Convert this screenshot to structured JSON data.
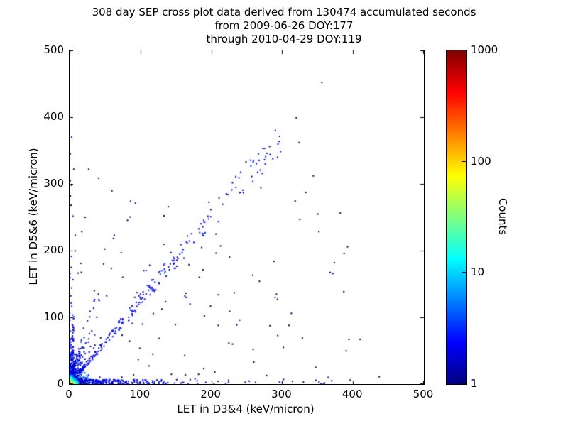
{
  "chart_data": {
    "type": "scatter",
    "title": "308 day SEP cross plot data derived from 130474 accumulated seconds",
    "subtitle1": "from 2009-06-26 DOY:177",
    "subtitle2": "through 2010-04-29 DOY:119",
    "xlabel": "LET in D3&4 (keV/micron)",
    "ylabel": "LET in D5&6 (keV/micron)",
    "xlim": [
      0,
      500
    ],
    "ylim": [
      0,
      500
    ],
    "xticks": [
      0,
      100,
      200,
      300,
      400,
      500
    ],
    "yticks": [
      0,
      100,
      200,
      300,
      400,
      500
    ],
    "grid": false,
    "colorbar": {
      "label": "Counts",
      "scale": "log",
      "min": 1,
      "max": 1000,
      "ticks": [
        1,
        10,
        100,
        1000
      ],
      "colormap": "jet"
    },
    "point_color_low": "#000080",
    "point_color_high": "#800000",
    "seed": 20091777,
    "clusters": [
      {
        "name": "origin-halo",
        "kind": "halo",
        "n": 650,
        "scale": 7,
        "max": 45,
        "cmax": 6,
        "size": 2
      },
      {
        "name": "origin-fan",
        "kind": "fan",
        "n": 160,
        "scale": 11,
        "max": 55,
        "cmax": 2,
        "size": 2
      },
      {
        "name": "x-axis-band",
        "kind": "xband",
        "n": 260,
        "scale": 55,
        "max": 430,
        "thick": 7,
        "cmax": 2,
        "size": 2
      },
      {
        "name": "y-axis-band",
        "kind": "yband",
        "n": 150,
        "scale": 40,
        "max": 330,
        "thick": 6,
        "cmax": 2,
        "size": 2
      },
      {
        "name": "diagonal-band",
        "kind": "diagonal",
        "n": 300,
        "xmin": 4,
        "xmax": 300,
        "power": 2.2,
        "slope": 1.25,
        "spread": 14,
        "cmax": 2,
        "size": 2
      },
      {
        "name": "sparse-field",
        "kind": "field",
        "n": 110,
        "xmax": 400,
        "ymax": 320,
        "size": 2
      },
      {
        "name": "origin-core",
        "kind": "core",
        "n": 700,
        "scale": 3,
        "max": 12,
        "peak": 150,
        "falloff": 5,
        "size": 2
      }
    ],
    "points": [
      [
        356,
        452
      ],
      [
        324,
        362
      ],
      [
        249,
        333
      ],
      [
        344,
        312
      ],
      [
        320,
        399
      ],
      [
        283,
        344
      ],
      [
        211,
        279
      ],
      [
        93,
        271
      ],
      [
        27,
        322
      ],
      [
        3,
        298
      ],
      [
        8,
        223
      ],
      [
        63,
        223
      ],
      [
        108,
        170
      ],
      [
        143,
        197
      ],
      [
        213,
        207
      ],
      [
        183,
        160
      ],
      [
        268,
        154
      ],
      [
        313,
        106
      ],
      [
        410,
        67
      ],
      [
        437,
        11
      ],
      [
        396,
        6
      ],
      [
        365,
        10
      ],
      [
        352,
        3
      ],
      [
        302,
        7
      ],
      [
        278,
        13
      ],
      [
        3,
        370
      ],
      [
        1,
        345
      ],
      [
        6,
        322
      ],
      [
        2,
        268
      ],
      [
        152,
        190
      ],
      [
        118,
        142
      ],
      [
        92,
        130
      ],
      [
        75,
        160
      ],
      [
        48,
        180
      ],
      [
        35,
        140
      ],
      [
        22,
        250
      ],
      [
        170,
        120
      ],
      [
        230,
        60
      ],
      [
        260,
        33
      ],
      [
        205,
        18
      ],
      [
        177,
        8
      ],
      [
        240,
        96
      ],
      [
        370,
        5
      ],
      [
        330,
        3
      ]
    ]
  }
}
